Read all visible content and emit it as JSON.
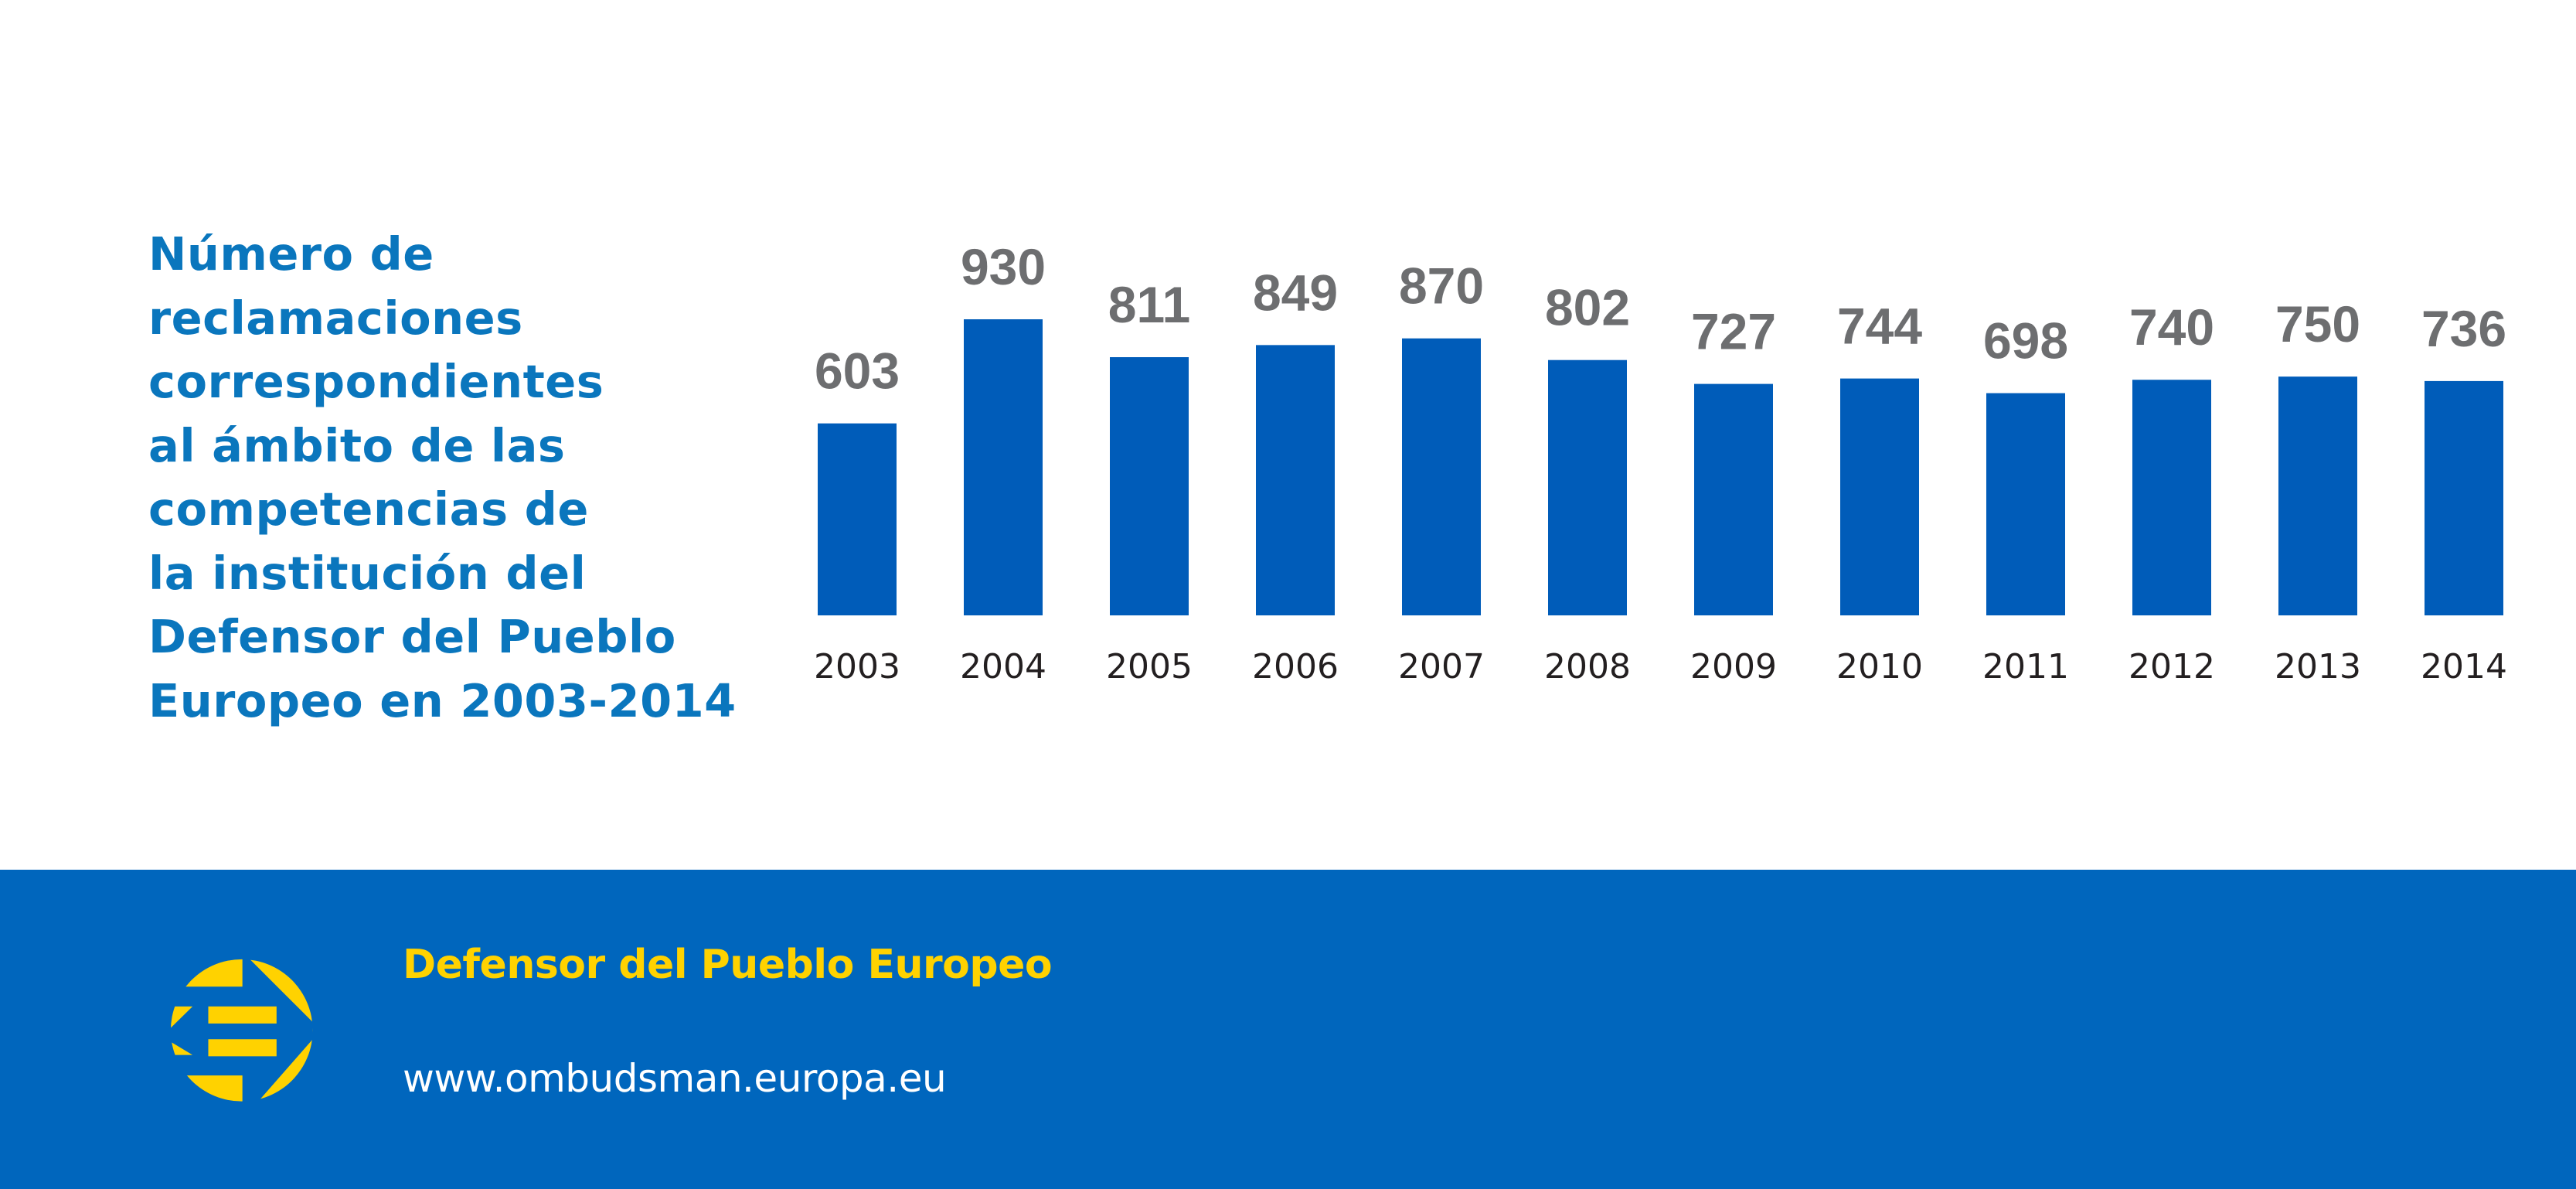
{
  "title_lines": [
    "Número de",
    "reclamaciones",
    "correspondientes",
    "al ámbito de las",
    "competencias de",
    "la institución del",
    "Defensor del Pueblo",
    "Europeo en 2003-2014"
  ],
  "colors": {
    "bar": "#005cb9",
    "title": "#0a76bd",
    "value_label": "#6d6e70",
    "year_label": "#231f20",
    "footer_bg": "#0066bd",
    "logo": "#ffd200"
  },
  "chart_data": {
    "type": "bar",
    "title": "Número de reclamaciones correspondientes al ámbito de las competencias de la institución del Defensor del Pueblo Europeo en 2003-2014",
    "categories": [
      "2003",
      "2004",
      "2005",
      "2006",
      "2007",
      "2008",
      "2009",
      "2010",
      "2011",
      "2012",
      "2013",
      "2014"
    ],
    "values": [
      603,
      930,
      811,
      849,
      870,
      802,
      727,
      744,
      698,
      740,
      750,
      736
    ],
    "xlabel": "",
    "ylabel": "",
    "ylim": [
      0,
      930
    ],
    "grid": false,
    "data_labels": true,
    "legend": "none"
  },
  "footer": {
    "logo_icon": "european-ombudsman-logo-icon",
    "name": "Defensor del Pueblo Europeo",
    "url": "www.ombudsman.europa.eu"
  }
}
